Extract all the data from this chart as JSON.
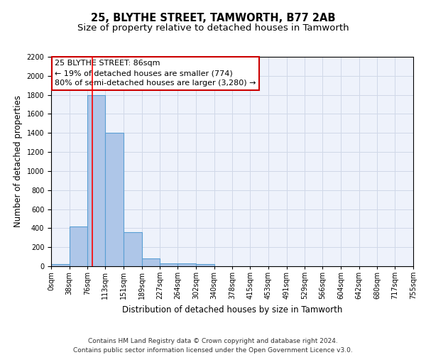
{
  "title": "25, BLYTHE STREET, TAMWORTH, B77 2AB",
  "subtitle": "Size of property relative to detached houses in Tamworth",
  "xlabel": "Distribution of detached houses by size in Tamworth",
  "ylabel": "Number of detached properties",
  "bin_edges": [
    0,
    38,
    76,
    113,
    151,
    189,
    227,
    264,
    302,
    340,
    378,
    415,
    453,
    491,
    529,
    566,
    604,
    642,
    680,
    717,
    755
  ],
  "bin_counts": [
    20,
    420,
    1800,
    1400,
    360,
    80,
    30,
    30,
    20,
    0,
    0,
    0,
    0,
    0,
    0,
    0,
    0,
    0,
    0,
    0
  ],
  "bar_color": "#aec6e8",
  "bar_edge_color": "#5a9fd4",
  "red_line_x": 86,
  "ylim": [
    0,
    2200
  ],
  "annotation_title": "25 BLYTHE STREET: 86sqm",
  "annotation_line1": "← 19% of detached houses are smaller (774)",
  "annotation_line2": "80% of semi-detached houses are larger (3,280) →",
  "annotation_box_color": "#ffffff",
  "annotation_box_edge_color": "#cc0000",
  "grid_color": "#d0d8e8",
  "background_color": "#eef2fb",
  "footer_line1": "Contains HM Land Registry data © Crown copyright and database right 2024.",
  "footer_line2": "Contains public sector information licensed under the Open Government Licence v3.0.",
  "title_fontsize": 10.5,
  "subtitle_fontsize": 9.5,
  "ylabel_fontsize": 8.5,
  "xlabel_fontsize": 8.5,
  "tick_fontsize": 7,
  "annotation_fontsize": 8,
  "footer_fontsize": 6.5
}
